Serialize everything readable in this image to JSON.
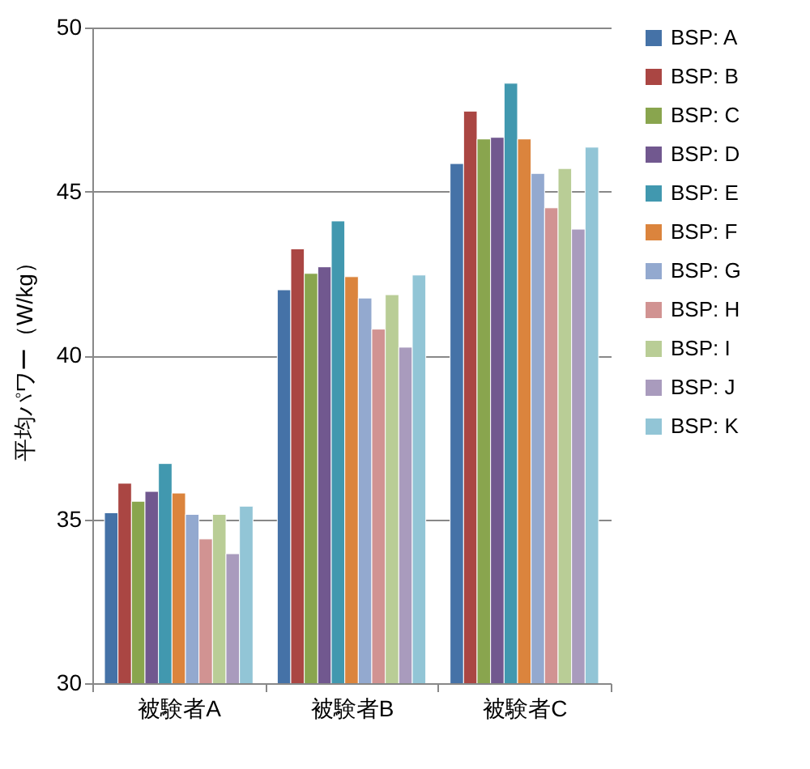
{
  "chart_data": {
    "type": "bar",
    "ylabel": "平均パワー（W/kg）",
    "categories": [
      "被験者A",
      "被験者B",
      "被験者C"
    ],
    "ylim": [
      30,
      50
    ],
    "yticks": [
      30,
      35,
      40,
      45,
      50
    ],
    "grid": "y",
    "legend": "right",
    "series": [
      {
        "name": "BSP: A",
        "color": "#4572a7",
        "values": [
          35.2,
          42.0,
          45.85
        ]
      },
      {
        "name": "BSP: B",
        "color": "#aa4643",
        "values": [
          36.1,
          43.25,
          47.45
        ]
      },
      {
        "name": "BSP: C",
        "color": "#89a54e",
        "values": [
          35.55,
          42.5,
          46.6
        ]
      },
      {
        "name": "BSP: D",
        "color": "#71588f",
        "values": [
          35.85,
          42.7,
          46.65
        ]
      },
      {
        "name": "BSP: E",
        "color": "#4198af",
        "values": [
          36.7,
          44.1,
          48.3
        ]
      },
      {
        "name": "BSP: F",
        "color": "#db843d",
        "values": [
          35.8,
          42.4,
          46.6
        ]
      },
      {
        "name": "BSP: G",
        "color": "#93a9cf",
        "values": [
          35.15,
          41.75,
          45.55
        ]
      },
      {
        "name": "BSP: H",
        "color": "#d19392",
        "values": [
          34.4,
          40.8,
          44.5
        ]
      },
      {
        "name": "BSP: I",
        "color": "#b9cd96",
        "values": [
          35.15,
          41.85,
          45.7
        ]
      },
      {
        "name": "BSP: J",
        "color": "#a99bbd",
        "values": [
          33.95,
          40.25,
          43.85
        ]
      },
      {
        "name": "BSP: K",
        "color": "#92c5d6",
        "values": [
          35.4,
          42.45,
          46.35
        ]
      }
    ]
  }
}
